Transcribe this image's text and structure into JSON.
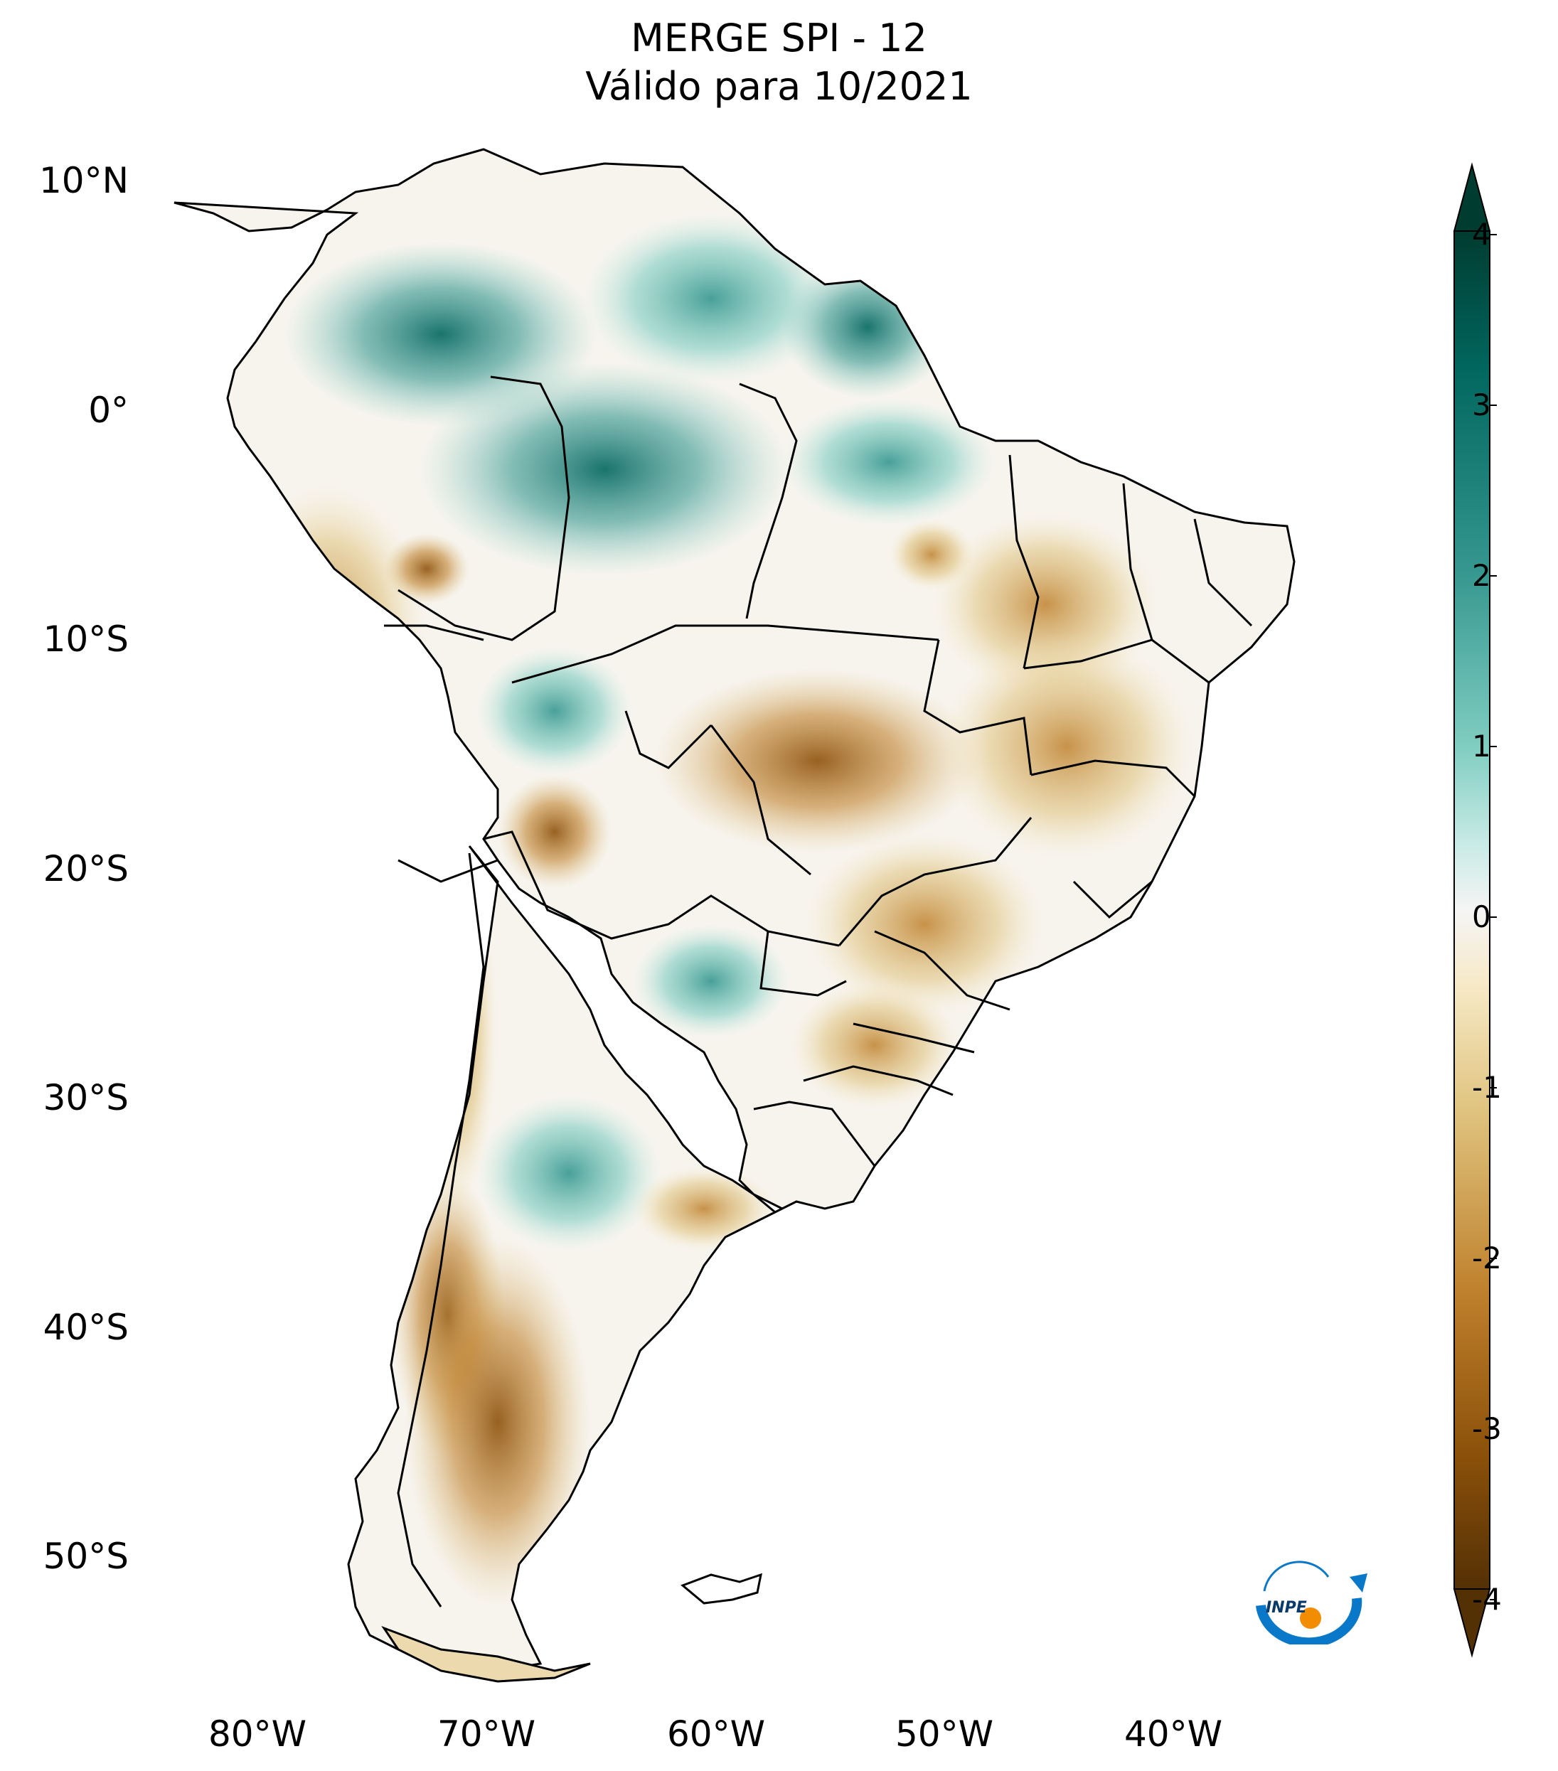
{
  "title": {
    "line1": "MERGE   SPI - 12",
    "line2": "Válido para 10/2021"
  },
  "latitude_labels": [
    "10°N",
    "0°",
    "10°S",
    "20°S",
    "30°S",
    "40°S",
    "50°S"
  ],
  "longitude_labels": [
    "80°W",
    "70°W",
    "60°W",
    "50°W",
    "40°W"
  ],
  "colorbar": {
    "ticks": [
      "4",
      "3",
      "2",
      "1",
      "0",
      "-1",
      "-2",
      "-3",
      "-4"
    ],
    "colors": {
      "wet_max": "#003c30",
      "wet_high": "#35978f",
      "wet_low": "#c7eae5",
      "neutral": "#f5f5f5",
      "dry_low": "#f6e8c3",
      "dry_mid": "#dfc27d",
      "dry_high": "#bf812d",
      "dry_max": "#543005"
    }
  },
  "logo": {
    "text": "INPE",
    "colors": {
      "primary": "#0a78c8",
      "accent": "#f28c00"
    }
  }
}
